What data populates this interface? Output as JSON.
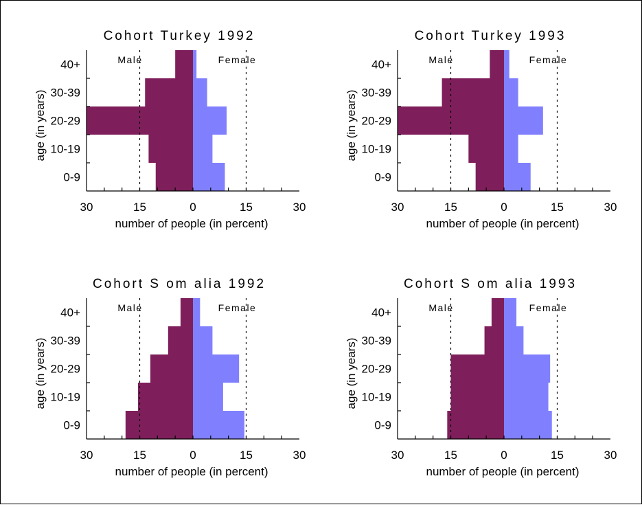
{
  "chart_data": [
    {
      "type": "bar",
      "title": "Cohort Turkey 1992",
      "categories": [
        "0-9",
        "10-19",
        "20-29",
        "30-39",
        "40+"
      ],
      "series": [
        {
          "name": "Male",
          "values": [
            10.5,
            12.5,
            30,
            13.5,
            5
          ]
        },
        {
          "name": "Female",
          "values": [
            9,
            5.5,
            9.5,
            4,
            1
          ]
        }
      ],
      "xticks": [
        "30",
        "15",
        "0",
        "15",
        "30"
      ],
      "xlabel": "number of people (in percent)",
      "ylabel": "age (in years)",
      "xlim": [
        -30,
        30
      ]
    },
    {
      "type": "bar",
      "title": "Cohort Turkey 1993",
      "categories": [
        "0-9",
        "10-19",
        "20-29",
        "30-39",
        "40+"
      ],
      "series": [
        {
          "name": "Male",
          "values": [
            8,
            10,
            30,
            17.5,
            4
          ]
        },
        {
          "name": "Female",
          "values": [
            7.5,
            4,
            11,
            4,
            1.5
          ]
        }
      ],
      "xticks": [
        "30",
        "15",
        "0",
        "15",
        "30"
      ],
      "xlabel": "number of people (in percent)",
      "ylabel": "age (in years)",
      "xlim": [
        -30,
        30
      ]
    },
    {
      "type": "bar",
      "title": "Cohort S om alia 1992",
      "categories": [
        "0-9",
        "10-19",
        "20-29",
        "30-39",
        "40+"
      ],
      "series": [
        {
          "name": "Male",
          "values": [
            19,
            15.5,
            12,
            7,
            3.5
          ]
        },
        {
          "name": "Female",
          "values": [
            14.5,
            8.5,
            13,
            5.5,
            2
          ]
        }
      ],
      "xticks": [
        "30",
        "15",
        "0",
        "15",
        "30"
      ],
      "xlabel": "number of people (in percent)",
      "ylabel": "age (in years)",
      "xlim": [
        -30,
        30
      ]
    },
    {
      "type": "bar",
      "title": "Cohort S om alia 1993",
      "categories": [
        "0-9",
        "10-19",
        "20-29",
        "30-39",
        "40+"
      ],
      "series": [
        {
          "name": "Male",
          "values": [
            16,
            15,
            15,
            5.5,
            3.5
          ]
        },
        {
          "name": "Female",
          "values": [
            13.5,
            12.5,
            13,
            5.5,
            3.5
          ]
        }
      ],
      "xticks": [
        "30",
        "15",
        "0",
        "15",
        "30"
      ],
      "xlabel": "number of people (in percent)",
      "ylabel": "age (in years)",
      "xlim": [
        -30,
        30
      ]
    }
  ],
  "colors": {
    "male": "#7e1f5b",
    "female": "#8080ff",
    "axis": "#000000"
  }
}
